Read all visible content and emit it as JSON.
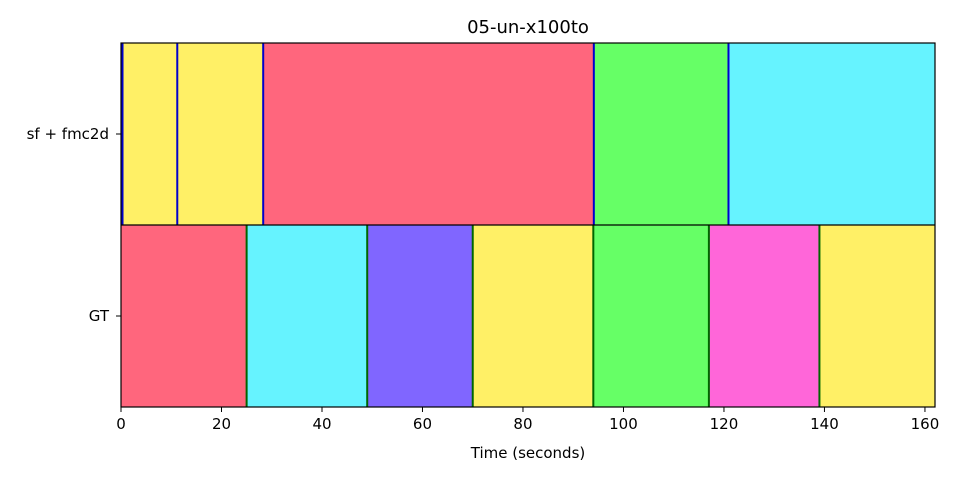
{
  "chart_data": {
    "type": "segmentation-timeline",
    "title": "05-un-x100to",
    "xlabel": "Time (seconds)",
    "ylabel": "",
    "xlim": [
      0,
      162
    ],
    "x_ticks": [
      "0",
      "20",
      "40",
      "60",
      "80",
      "100",
      "120",
      "140",
      "160"
    ],
    "grid": false,
    "rows": [
      {
        "label": "sf + fmc2d",
        "boundary_color": "#0000cc",
        "segments": [
          {
            "start": 0,
            "end": 0.3,
            "color": "#fff066"
          },
          {
            "start": 0.3,
            "end": 11.2,
            "color": "#fff066"
          },
          {
            "start": 11.2,
            "end": 28.3,
            "color": "#fff066"
          },
          {
            "start": 28.3,
            "end": 94.1,
            "color": "#ff667d"
          },
          {
            "start": 94.1,
            "end": 120.9,
            "color": "#66ff66"
          },
          {
            "start": 120.9,
            "end": 162,
            "color": "#66f3ff"
          }
        ],
        "boundaries": [
          0.3,
          11.2,
          28.3,
          94.1,
          120.9
        ]
      },
      {
        "label": "GT",
        "boundary_color": "#006600",
        "segments": [
          {
            "start": 0,
            "end": 25,
            "color": "#ff667d"
          },
          {
            "start": 25,
            "end": 49,
            "color": "#66f3ff"
          },
          {
            "start": 49,
            "end": 70,
            "color": "#8066ff"
          },
          {
            "start": 70,
            "end": 94,
            "color": "#fff066"
          },
          {
            "start": 94,
            "end": 117,
            "color": "#66ff66"
          },
          {
            "start": 117,
            "end": 139,
            "color": "#ff66d9"
          },
          {
            "start": 139,
            "end": 162,
            "color": "#fff066"
          }
        ],
        "boundaries": [
          25,
          49,
          70,
          94,
          117,
          139
        ]
      }
    ]
  }
}
